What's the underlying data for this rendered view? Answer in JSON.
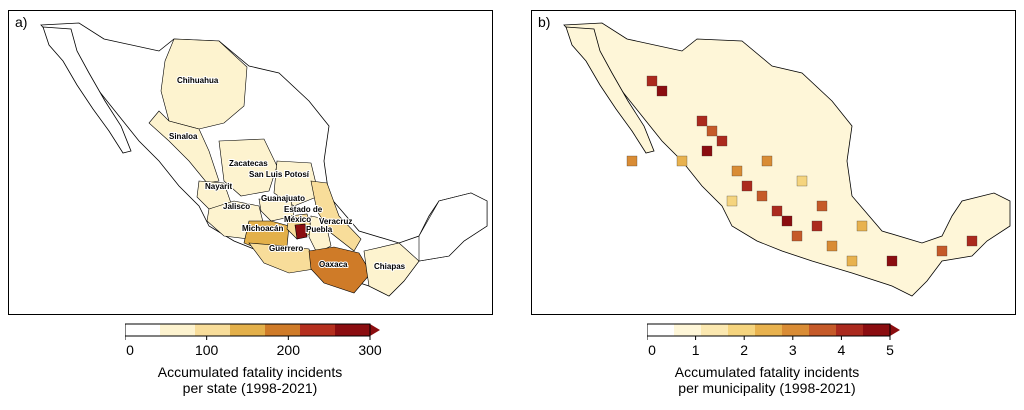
{
  "panels": [
    {
      "label": "a)",
      "states": [
        {
          "name": "Chihuahua",
          "level": 1
        },
        {
          "name": "Sinaloa",
          "level": 1
        },
        {
          "name": "Zacatecas",
          "level": 1
        },
        {
          "name": "San Luis Potosí",
          "level": 1
        },
        {
          "name": "Nayarit",
          "level": 1
        },
        {
          "name": "Jalisco",
          "level": 1
        },
        {
          "name": "Guanajuato",
          "level": 1
        },
        {
          "name": "Estado de México",
          "level": 2
        },
        {
          "name": "Veracruz",
          "level": 2
        },
        {
          "name": "Michoacán",
          "level": 3
        },
        {
          "name": "Puebla",
          "level": 1
        },
        {
          "name": "Guerrero",
          "level": 2
        },
        {
          "name": "Oaxaca",
          "level": 4
        },
        {
          "name": "Chiapas",
          "level": 1
        }
      ],
      "colorbar": {
        "ticks": [
          "0",
          "100",
          "200",
          "300"
        ],
        "title_line1": "Accumulated fatality incidents",
        "title_line2": "per state (1998-2021)"
      }
    },
    {
      "label": "b)",
      "colorbar": {
        "ticks": [
          "0",
          "1",
          "2",
          "3",
          "4",
          "5"
        ],
        "title_line1": "Accumulated fatality incidents",
        "title_line2": "per municipality (1998-2021)"
      }
    }
  ],
  "colors": {
    "scale_a": [
      "#ffffff",
      "#fdf3cf",
      "#f8dd9a",
      "#e3b04a",
      "#cf7b28",
      "#b52f1e",
      "#8b0d10"
    ],
    "scale_b": [
      "#ffffff",
      "#fef6d8",
      "#fbe8b0",
      "#f5d47e",
      "#e8b24e",
      "#d98c35",
      "#c55a29",
      "#ab2a1e",
      "#8b0d10"
    ],
    "border": "#000000"
  }
}
